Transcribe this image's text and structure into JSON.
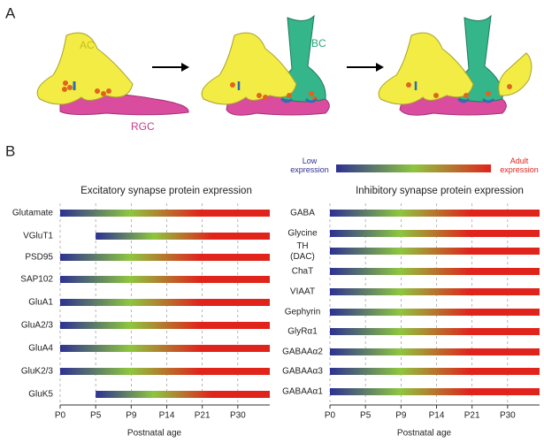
{
  "panel_a": {
    "label": "A",
    "cells": {
      "ac": "AC",
      "bc": "BC",
      "rgc": "RGC"
    }
  },
  "panel_b": {
    "label": "B",
    "legend": {
      "low": "Low expression",
      "high": "Adult expression"
    },
    "gradient": [
      "#2e3192",
      "#8dc63f",
      "#e0241c",
      "#e0241c"
    ]
  },
  "chart_data": [
    {
      "type": "gradient-bar",
      "title": "Excitatory synapse protein expression",
      "categories": [
        "Glutamate",
        "VGluT1",
        "PSD95",
        "SAP102",
        "GluA1",
        "GluA2/3",
        "GluA4",
        "GluK2/3",
        "GluK5"
      ],
      "onsets": [
        0,
        1,
        0,
        0,
        0,
        0,
        0,
        0,
        1
      ],
      "xlim": [
        0,
        5.9
      ],
      "xticks": [
        {
          "value": 0,
          "label": "P0"
        },
        {
          "value": 1,
          "label": "P5"
        },
        {
          "value": 2,
          "label": "P9"
        },
        {
          "value": 3,
          "label": "P14"
        },
        {
          "value": 4,
          "label": "P21"
        },
        {
          "value": 5,
          "label": "P30"
        }
      ],
      "x_label": "Postnatal age",
      "grid": true
    },
    {
      "type": "gradient-bar",
      "title": "Inhibitory synapse protein expression",
      "categories": [
        "GABA",
        "Glycine",
        "TH (DAC)",
        "ChaT",
        "VIAAT",
        "Gephyrin",
        "GlyRα1",
        "GABAAα2",
        "GABAAα3",
        "GABAAα1"
      ],
      "onsets": [
        0,
        0,
        0,
        0,
        0,
        0,
        0,
        0,
        0,
        0
      ],
      "xlim": [
        0,
        5.9
      ],
      "xticks": [
        {
          "value": 0,
          "label": "P0"
        },
        {
          "value": 1,
          "label": "P5"
        },
        {
          "value": 2,
          "label": "P9"
        },
        {
          "value": 3,
          "label": "P14"
        },
        {
          "value": 4,
          "label": "P21"
        },
        {
          "value": 5,
          "label": "P30"
        }
      ],
      "x_label": "Postnatal age",
      "grid": true
    }
  ]
}
